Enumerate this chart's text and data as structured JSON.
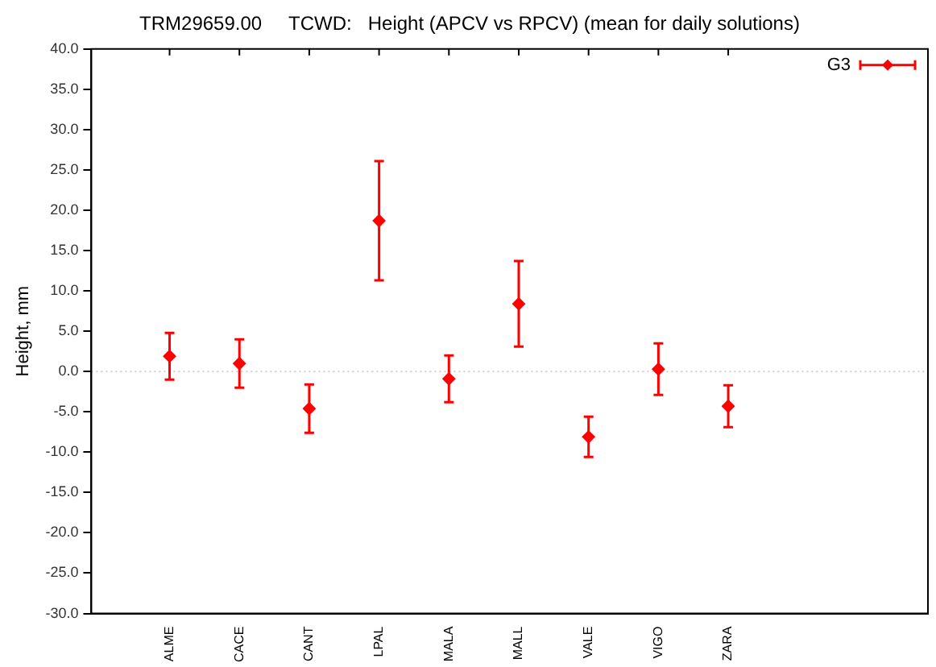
{
  "chart_data": {
    "type": "scatter",
    "title": "TRM29659.00     TCWD:   Height (APCV vs RPCV) (mean for daily solutions)",
    "ylabel": "Height, mm",
    "categories": [
      "ALME",
      "CACE",
      "CANT",
      "LPAL",
      "MALA",
      "MALL",
      "VALE",
      "VIGO",
      "ZARA"
    ],
    "series": [
      {
        "name": "G3",
        "color": "#ff0000",
        "values": [
          1.9,
          1.0,
          -4.6,
          18.7,
          -0.9,
          8.4,
          -8.1,
          0.3,
          -4.3
        ],
        "errors": [
          2.9,
          3.0,
          3.0,
          7.4,
          2.9,
          5.3,
          2.5,
          3.2,
          2.6
        ]
      }
    ],
    "ylim": [
      -30,
      40
    ],
    "yticks": [
      {
        "value": -30,
        "label": "-30.0"
      },
      {
        "value": -25,
        "label": "-25.0"
      },
      {
        "value": -20,
        "label": "-20.0"
      },
      {
        "value": -15,
        "label": "-15.0"
      },
      {
        "value": -10,
        "label": "-10.0"
      },
      {
        "value": -5,
        "label": "-5.0"
      },
      {
        "value": 0,
        "label": "0.0"
      },
      {
        "value": 5,
        "label": "5.0"
      },
      {
        "value": 10,
        "label": "10.0"
      },
      {
        "value": 15,
        "label": "15.0"
      },
      {
        "value": 20,
        "label": "20.0"
      },
      {
        "value": 25,
        "label": "25.0"
      },
      {
        "value": 30,
        "label": "30.0"
      },
      {
        "value": 35,
        "label": "35.0"
      },
      {
        "value": 40,
        "label": "40.0"
      }
    ],
    "ref_lines": [
      {
        "axis": "y",
        "value": 0,
        "color": "#cccccc",
        "line_style": "dotted"
      }
    ],
    "marker": "diamond",
    "legend": "top right",
    "grid": false
  }
}
